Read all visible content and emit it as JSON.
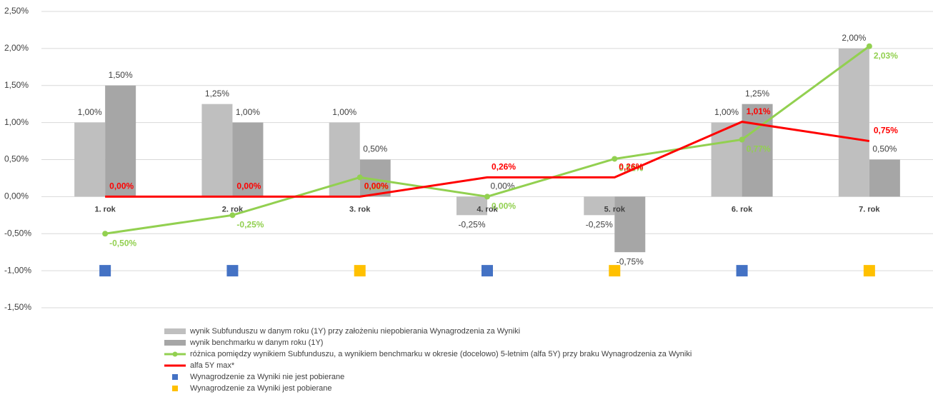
{
  "chart_data": {
    "type": "bar",
    "categories": [
      "1. rok",
      "2. rok",
      "3. rok",
      "4. rok",
      "5. rok",
      "6. rok",
      "7. rok"
    ],
    "ylim": [
      -1.5,
      2.5
    ],
    "yticks": [
      {
        "value": 2.5,
        "label": "2,50%"
      },
      {
        "value": 2.0,
        "label": "2,00%"
      },
      {
        "value": 1.5,
        "label": "1,50%"
      },
      {
        "value": 1.0,
        "label": "1,00%"
      },
      {
        "value": 0.5,
        "label": "0,50%"
      },
      {
        "value": 0.0,
        "label": "0,00%"
      },
      {
        "value": -0.5,
        "label": "-0,50%"
      },
      {
        "value": -1.0,
        "label": "-1,00%"
      },
      {
        "value": -1.5,
        "label": "-1,50%"
      }
    ],
    "grid": true,
    "series": [
      {
        "name": "wynik Subfunduszu w danym roku (1Y) przy założeniu niepobierania Wynagrodzenia za Wyniki",
        "type": "bar",
        "color": "#bfbfbf",
        "values": [
          1.0,
          1.25,
          1.0,
          -0.25,
          -0.25,
          1.0,
          2.0
        ],
        "value_labels": [
          "1,00%",
          "1,25%",
          "1,00%",
          "-0,25%",
          "-0,25%",
          "1,00%",
          "2,00%"
        ]
      },
      {
        "name": "wynik benchmarku w danym roku (1Y)",
        "type": "bar",
        "color": "#a6a6a6",
        "values": [
          1.5,
          1.0,
          0.5,
          0.0,
          -0.75,
          1.25,
          0.5
        ],
        "value_labels": [
          "1,50%",
          "1,00%",
          "0,50%",
          "0,00%",
          "-0,75%",
          "1,25%",
          "0,50%"
        ]
      },
      {
        "name": "różnica pomiędzy wynikiem Subfunduszu, a wynikiem benchmarku w okresie (docelowo) 5-letnim (alfa 5Y) przy braku Wynagrodzenia za Wyniki",
        "type": "line",
        "marker": true,
        "color": "#92d050",
        "values": [
          -0.5,
          -0.25,
          0.26,
          0.0,
          0.51,
          0.77,
          2.03
        ],
        "value_labels": [
          "-0,50%",
          "-0,25%",
          "0,26%",
          "0,00%",
          "0,51%",
          "0,77%",
          "2,03%"
        ]
      },
      {
        "name": "alfa 5Y max*",
        "type": "line",
        "marker": false,
        "color": "#ff0000",
        "values": [
          0.0,
          0.0,
          0.0,
          0.26,
          0.26,
          1.01,
          0.75
        ],
        "value_labels": [
          "0,00%",
          "0,00%",
          "0,00%",
          "0,26%",
          "0,26%",
          "1,01%",
          "0,75%"
        ]
      },
      {
        "name": "Wynagrodzenie za Wyniki nie jest pobierane",
        "type": "scatter",
        "color": "#4472c4",
        "values": [
          -1.0,
          -1.0,
          null,
          -1.0,
          null,
          -1.0,
          null
        ]
      },
      {
        "name": "Wynagrodzenie za Wyniki jest pobierane",
        "type": "scatter",
        "color": "#ffc000",
        "values": [
          null,
          null,
          -1.0,
          null,
          -1.0,
          null,
          -1.0
        ]
      }
    ]
  }
}
